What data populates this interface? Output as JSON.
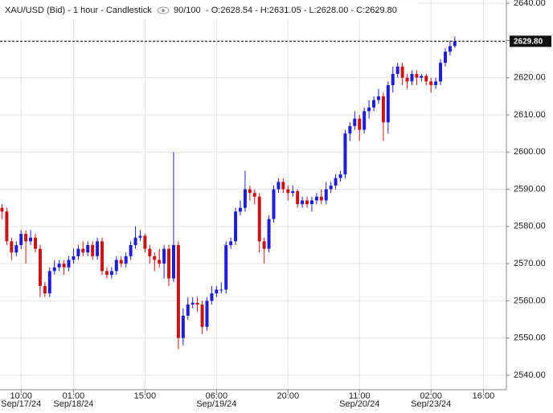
{
  "chart_data": {
    "type": "candlestick",
    "title": "XAU/USD (Bid) - 1 hour - Candlestick",
    "counter": "90/100",
    "header_labels": [
      "O:2628.54",
      "H:2631.05",
      "L:2628.00",
      "C:2629.80"
    ],
    "last_price": 2629.8,
    "last_price_label": "2629.80",
    "up_color": "#1f1fd0",
    "down_color": "#c41616",
    "grid": true,
    "ylim": [
      2536.1,
      2640.9
    ],
    "yticks": [
      {
        "value": 2540,
        "label": "2540.00"
      },
      {
        "value": 2550,
        "label": "2550.00"
      },
      {
        "value": 2560,
        "label": "2560.00"
      },
      {
        "value": 2570,
        "label": "2570.00"
      },
      {
        "value": 2580,
        "label": "2580.00"
      },
      {
        "value": 2590,
        "label": "2590.00"
      },
      {
        "value": 2600,
        "label": "2600.00"
      },
      {
        "value": 2610,
        "label": "2610.00"
      },
      {
        "value": 2620,
        "label": "2620.00"
      },
      {
        "value": 2630,
        "label": "2630.00"
      },
      {
        "value": 2640,
        "label": "2640.00"
      }
    ],
    "categories": [
      null,
      null,
      null,
      null,
      "10:00",
      null,
      null,
      null,
      null,
      null,
      null,
      null,
      null,
      null,
      null,
      "01:00",
      null,
      null,
      null,
      null,
      null,
      null,
      null,
      null,
      null,
      null,
      null,
      null,
      null,
      null,
      "15:00",
      null,
      null,
      null,
      null,
      null,
      null,
      null,
      null,
      null,
      null,
      null,
      null,
      null,
      null,
      "06:00",
      null,
      null,
      null,
      null,
      null,
      null,
      null,
      null,
      null,
      null,
      null,
      null,
      null,
      null,
      "20:00",
      null,
      null,
      null,
      null,
      null,
      null,
      null,
      null,
      null,
      null,
      null,
      null,
      null,
      null,
      "11:00",
      null,
      null,
      null,
      null,
      null,
      null,
      null,
      null,
      null,
      null,
      null,
      null,
      null,
      null,
      "02:00",
      null,
      null,
      null,
      null,
      null,
      null,
      null,
      null,
      null,
      null,
      "16:00"
    ],
    "dates": [
      null,
      null,
      null,
      null,
      "Sep/17/24",
      null,
      null,
      null,
      null,
      null,
      null,
      null,
      null,
      null,
      null,
      "Sep/18/24",
      null,
      null,
      null,
      null,
      null,
      null,
      null,
      null,
      null,
      null,
      null,
      null,
      null,
      null,
      null,
      null,
      null,
      null,
      null,
      null,
      null,
      null,
      null,
      null,
      null,
      null,
      null,
      null,
      null,
      "Sep/19/24",
      null,
      null,
      null,
      null,
      null,
      null,
      null,
      null,
      null,
      null,
      null,
      null,
      null,
      null,
      null,
      null,
      null,
      null,
      null,
      null,
      null,
      null,
      null,
      null,
      null,
      null,
      null,
      null,
      null,
      "Sep/20/24",
      null,
      null,
      null,
      null,
      null,
      null,
      null,
      null,
      null,
      null,
      null,
      null,
      null,
      null,
      "Sep/23/24",
      null,
      null,
      null,
      null,
      null,
      null,
      null,
      null,
      null,
      null,
      null
    ],
    "open": [
      2585,
      2584,
      2576,
      2573,
      2575,
      2578,
      2576,
      2577,
      2574,
      2564,
      2562,
      2568,
      2569,
      2570,
      2569,
      2571,
      2572,
      2574,
      2573,
      2575,
      2572,
      2576,
      2568,
      2567,
      2568,
      2571,
      2570,
      2572,
      2575,
      2577,
      2577.5,
      2574,
      2572,
      2571,
      2570,
      2574,
      2566,
      2575,
      2550,
      2556,
      2559,
      2559.5,
      2559,
      2553,
      2560,
      2562,
      2563,
      2563,
      2575,
      2576,
      2584,
      2585,
      2590,
      2589,
      2588,
      2576,
      2574,
      2582,
      2590,
      2592,
      2590,
      2589,
      2589.5,
      2586,
      2587,
      2586,
      2587,
      2588,
      2587,
      2590,
      2591,
      2593,
      2594,
      2605,
      2607,
      2609,
      2606,
      2611,
      2612,
      2614,
      2615,
      2608,
      2618,
      2621,
      2623,
      2620,
      2619,
      2621,
      2620,
      2620.5,
      2619,
      2618,
      2619,
      2624,
      2627,
      2628.54,
      null,
      null,
      null,
      null,
      null,
      null
    ],
    "high": [
      2586,
      2585,
      2577,
      2576,
      2579,
      2579,
      2579,
      2578,
      2575,
      2565,
      2569,
      2571,
      2571,
      2571,
      2572,
      2574,
      2575,
      2576,
      2576,
      2576,
      2577,
      2577,
      2569,
      2569,
      2572,
      2572,
      2573,
      2576,
      2580,
      2579,
      2578,
      2575,
      2573,
      2574,
      2575,
      2575,
      2600,
      2576,
      2558,
      2561,
      2561,
      2561,
      2560,
      2561,
      2564,
      2564,
      2565,
      2576,
      2577,
      2585,
      2587,
      2595,
      2591,
      2590,
      2589,
      2577,
      2583,
      2591,
      2593,
      2593,
      2591,
      2591,
      2590,
      2588,
      2588,
      2588,
      2589,
      2590,
      2592,
      2592,
      2594,
      2595,
      2606,
      2608,
      2611,
      2610,
      2612,
      2614,
      2615,
      2617,
      2616,
      2619,
      2623,
      2624,
      2624,
      2621,
      2622,
      2622,
      2621,
      2621,
      2620,
      2620,
      2625,
      2628,
      2630,
      2631.05,
      null,
      null,
      null,
      null,
      null,
      null
    ],
    "low": [
      2582,
      2575,
      2571,
      2572,
      2574,
      2570,
      2575,
      2573,
      2561,
      2561,
      2561,
      2567,
      2568,
      2567,
      2568,
      2570,
      2571,
      2572,
      2572,
      2571,
      2571,
      2567,
      2566,
      2566,
      2567,
      2569,
      2569,
      2571,
      2574,
      2576,
      2573,
      2570,
      2568,
      2569,
      2566,
      2564,
      2565,
      2547,
      2548,
      2555,
      2558,
      2557,
      2551,
      2552,
      2559,
      2561,
      2562,
      2562,
      2574,
      2575,
      2583,
      2584,
      2587,
      2586,
      2573,
      2570,
      2573,
      2581,
      2589,
      2589,
      2587,
      2588,
      2585,
      2585,
      2585,
      2584,
      2586,
      2586,
      2586,
      2589,
      2590,
      2592,
      2593,
      2603,
      2606,
      2603,
      2605,
      2609,
      2611,
      2613,
      2603,
      2605,
      2616,
      2620,
      2618,
      2617,
      2618,
      2618,
      2619,
      2618,
      2616,
      2617,
      2618,
      2623,
      2626,
      2628.0,
      null,
      null,
      null,
      null,
      null,
      null
    ],
    "close": [
      2584,
      2576,
      2573,
      2575,
      2578,
      2576,
      2577,
      2574,
      2564,
      2562,
      2568,
      2569,
      2570,
      2569,
      2571,
      2572,
      2574,
      2573,
      2575,
      2572,
      2576,
      2568,
      2567,
      2568,
      2571,
      2570,
      2572,
      2575,
      2577,
      2577.5,
      2574,
      2572,
      2571,
      2570,
      2574,
      2566,
      2575,
      2550,
      2556,
      2559,
      2559.5,
      2559,
      2553,
      2560,
      2562,
      2563,
      2563,
      2575,
      2576,
      2584,
      2585,
      2590,
      2589,
      2588,
      2576,
      2574,
      2582,
      2590,
      2592,
      2590,
      2589,
      2589.5,
      2586,
      2587,
      2586,
      2587,
      2588,
      2587,
      2590,
      2591,
      2593,
      2594,
      2605,
      2607,
      2609,
      2606,
      2611,
      2612,
      2614,
      2615,
      2608,
      2618,
      2621,
      2623,
      2620,
      2619,
      2621,
      2620,
      2620.5,
      2619,
      2618,
      2619,
      2624,
      2627,
      2628.5,
      2629.8,
      null,
      null,
      null,
      null,
      null,
      null
    ]
  }
}
